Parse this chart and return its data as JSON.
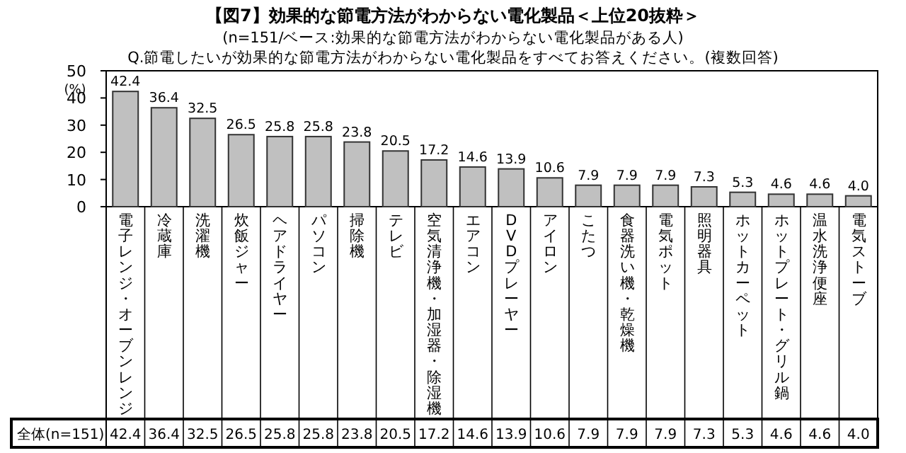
{
  "chart_data": {
    "type": "bar",
    "title": "【図7】効果的な節電方法がわからない電化製品＜上位20抜粋＞",
    "subtitle": "(n=151/ベース:効果的な節電方法がわからない電化製品がある人)",
    "annotations": [
      "Q.節電したいが効果的な節電方法がわからない電化製品をすべてお答えください。(複数回答)",
      "全体(n=151)"
    ],
    "ylabel": "(%)",
    "categories": [
      "電子レンジ・オーブンレンジ",
      "冷蔵庫",
      "洗濯機",
      "炊飯ジャー",
      "ヘアドライヤー",
      "パソコン",
      "掃除機",
      "テレビ",
      "空気清浄機・加湿器・除湿機",
      "エアコン",
      "DVDプレーヤー",
      "アイロン",
      "こたつ",
      "食器洗い機・乾燥機",
      "電気ポット",
      "照明器具",
      "ホットカーペット",
      "ホットプレート・グリル鍋",
      "温水洗浄便座",
      "電気ストーブ"
    ],
    "values": [
      42.4,
      36.4,
      32.5,
      26.5,
      25.8,
      25.8,
      23.8,
      20.5,
      17.2,
      14.6,
      13.9,
      10.6,
      7.9,
      7.9,
      7.9,
      7.3,
      5.3,
      4.6,
      4.6,
      4.0
    ],
    "value_labels": [
      "42.4",
      "36.4",
      "32.5",
      "26.5",
      "25.8",
      "25.8",
      "23.8",
      "20.5",
      "17.2",
      "14.6",
      "13.9",
      "10.6",
      "7.9",
      "7.9",
      "7.9",
      "7.3",
      "5.3",
      "4.6",
      "4.6",
      "4.0"
    ],
    "color": "#c0c0c0",
    "ylim": [
      0,
      50
    ],
    "yticks": [
      0,
      10,
      20,
      30,
      40,
      50
    ],
    "grid": false
  }
}
